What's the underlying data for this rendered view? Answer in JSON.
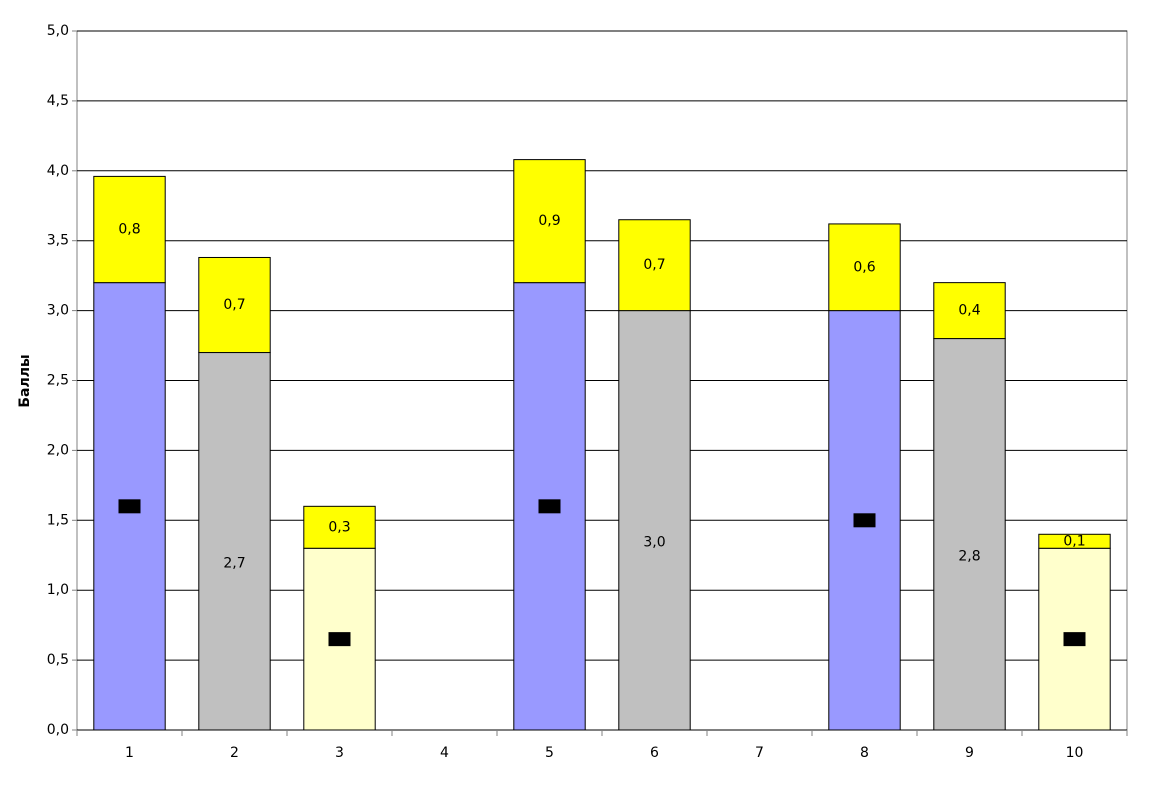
{
  "chart_data": {
    "type": "stacked_bar",
    "y_label": "Баллы",
    "categories": [
      "1",
      "2",
      "3",
      "4",
      "5",
      "6",
      "7",
      "8",
      "9",
      "10"
    ],
    "series": [
      {
        "colors": [
          "#9999ff",
          "#c0c0c0",
          "#ffffcc",
          null,
          "#9999ff",
          "#c0c0c0",
          null,
          "#9999ff",
          "#c0c0c0",
          "#ffffcc"
        ],
        "values": [
          3.2,
          2.7,
          1.3,
          null,
          3.2,
          3.0,
          null,
          3.0,
          2.8,
          1.3
        ],
        "value_labels": [
          null,
          "2,7",
          null,
          null,
          null,
          "3,0",
          null,
          null,
          "2,8",
          null
        ]
      },
      {
        "color": "#ffff00",
        "values": [
          0.76,
          0.68,
          0.3,
          null,
          0.88,
          0.65,
          null,
          0.62,
          0.4,
          0.1
        ],
        "value_labels": [
          "0,8",
          "0,7",
          "0,3",
          null,
          "0,9",
          "0,7",
          null,
          "0,6",
          "0,4",
          "0,1"
        ]
      }
    ],
    "ylim": [
      0,
      5
    ],
    "yticks": [
      {
        "value": 0,
        "label": "0,0"
      },
      {
        "value": 0.5,
        "label": "0,5"
      },
      {
        "value": 1,
        "label": "1,0"
      },
      {
        "value": 1.5,
        "label": "1,5"
      },
      {
        "value": 2,
        "label": "2,0"
      },
      {
        "value": 2.5,
        "label": "2,5"
      },
      {
        "value": 3,
        "label": "3,0"
      },
      {
        "value": 3.5,
        "label": "3,5"
      },
      {
        "value": 4,
        "label": "4,0"
      },
      {
        "value": 4.5,
        "label": "4,5"
      },
      {
        "value": 5,
        "label": "5,0"
      }
    ],
    "grid": true
  }
}
